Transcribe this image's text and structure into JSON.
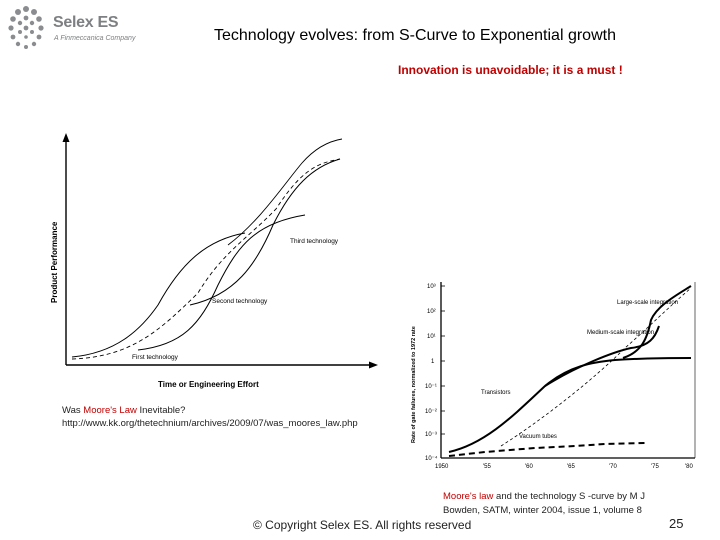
{
  "logo": {
    "name": "Selex ES",
    "tagline": "A Finmeccanica Company"
  },
  "title": "Technology evolves: from S-Curve to Exponential growth",
  "subtitle": "Innovation is unavoidable; it is a must !",
  "figure1": {
    "xlabel": "Time or Engineering Effort",
    "ylabel": "Product Performance",
    "curves": [
      "First technology",
      "Second technology",
      "Third technology"
    ]
  },
  "caption1": {
    "pre": "Was ",
    "highlight": "Moore's Law",
    "post": " Inevitable?",
    "url": "http://www.kk.org/thetechnium/archives/2009/07/was_moores_law.php"
  },
  "figure2": {
    "ylabel": "Rate of gate failures, normalized to 1972 rate",
    "y_ticks": [
      "10³",
      "10²",
      "10¹",
      "1",
      "10⁻¹",
      "10⁻²",
      "10⁻³",
      "10⁻⁴"
    ],
    "x_ticks": [
      "1950",
      "'55",
      "'60",
      "'65",
      "'70",
      "'75",
      "'80"
    ],
    "labels": [
      "Large-scale integration",
      "Medium-scale integration",
      "Transistors",
      "Vacuum tubes"
    ]
  },
  "caption2": {
    "highlight": "Moore's law",
    "line1_post": " and the technology S -curve by M J",
    "line2": "Bowden, SATM, winter 2004, issue 1, volume 8"
  },
  "footer": "© Copyright Selex ES. All rights reserved",
  "page_number": "25"
}
